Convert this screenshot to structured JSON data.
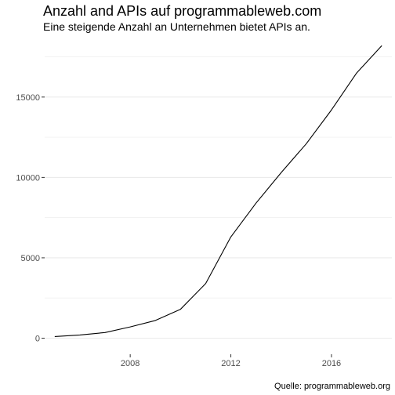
{
  "chart_data": {
    "type": "line",
    "title": "Anzahl and APIs auf programmableweb.com",
    "subtitle": "Eine steigende Anzahl an Unternehmen bietet APIs an.",
    "caption": "Quelle: programmableweb.org",
    "xlabel": "",
    "ylabel": "",
    "x": [
      2005,
      2006,
      2007,
      2008,
      2009,
      2010,
      2011,
      2012,
      2013,
      2014,
      2015,
      2016,
      2017,
      2018
    ],
    "series": [
      {
        "values": [
          100,
          200,
          350,
          700,
          1100,
          1800,
          3400,
          6300,
          8400,
          10300,
          12100,
          14200,
          16500,
          18200
        ]
      }
    ],
    "xlim": [
      2004.6,
      2018.4
    ],
    "ylim": [
      -1000,
      18600
    ],
    "xticks": [
      2008,
      2012,
      2016
    ],
    "yticks": [
      0,
      5000,
      10000,
      15000
    ],
    "grid": true,
    "colors": {
      "line": "#000000",
      "grid": "#ebebeb",
      "tick": "#333333"
    }
  }
}
